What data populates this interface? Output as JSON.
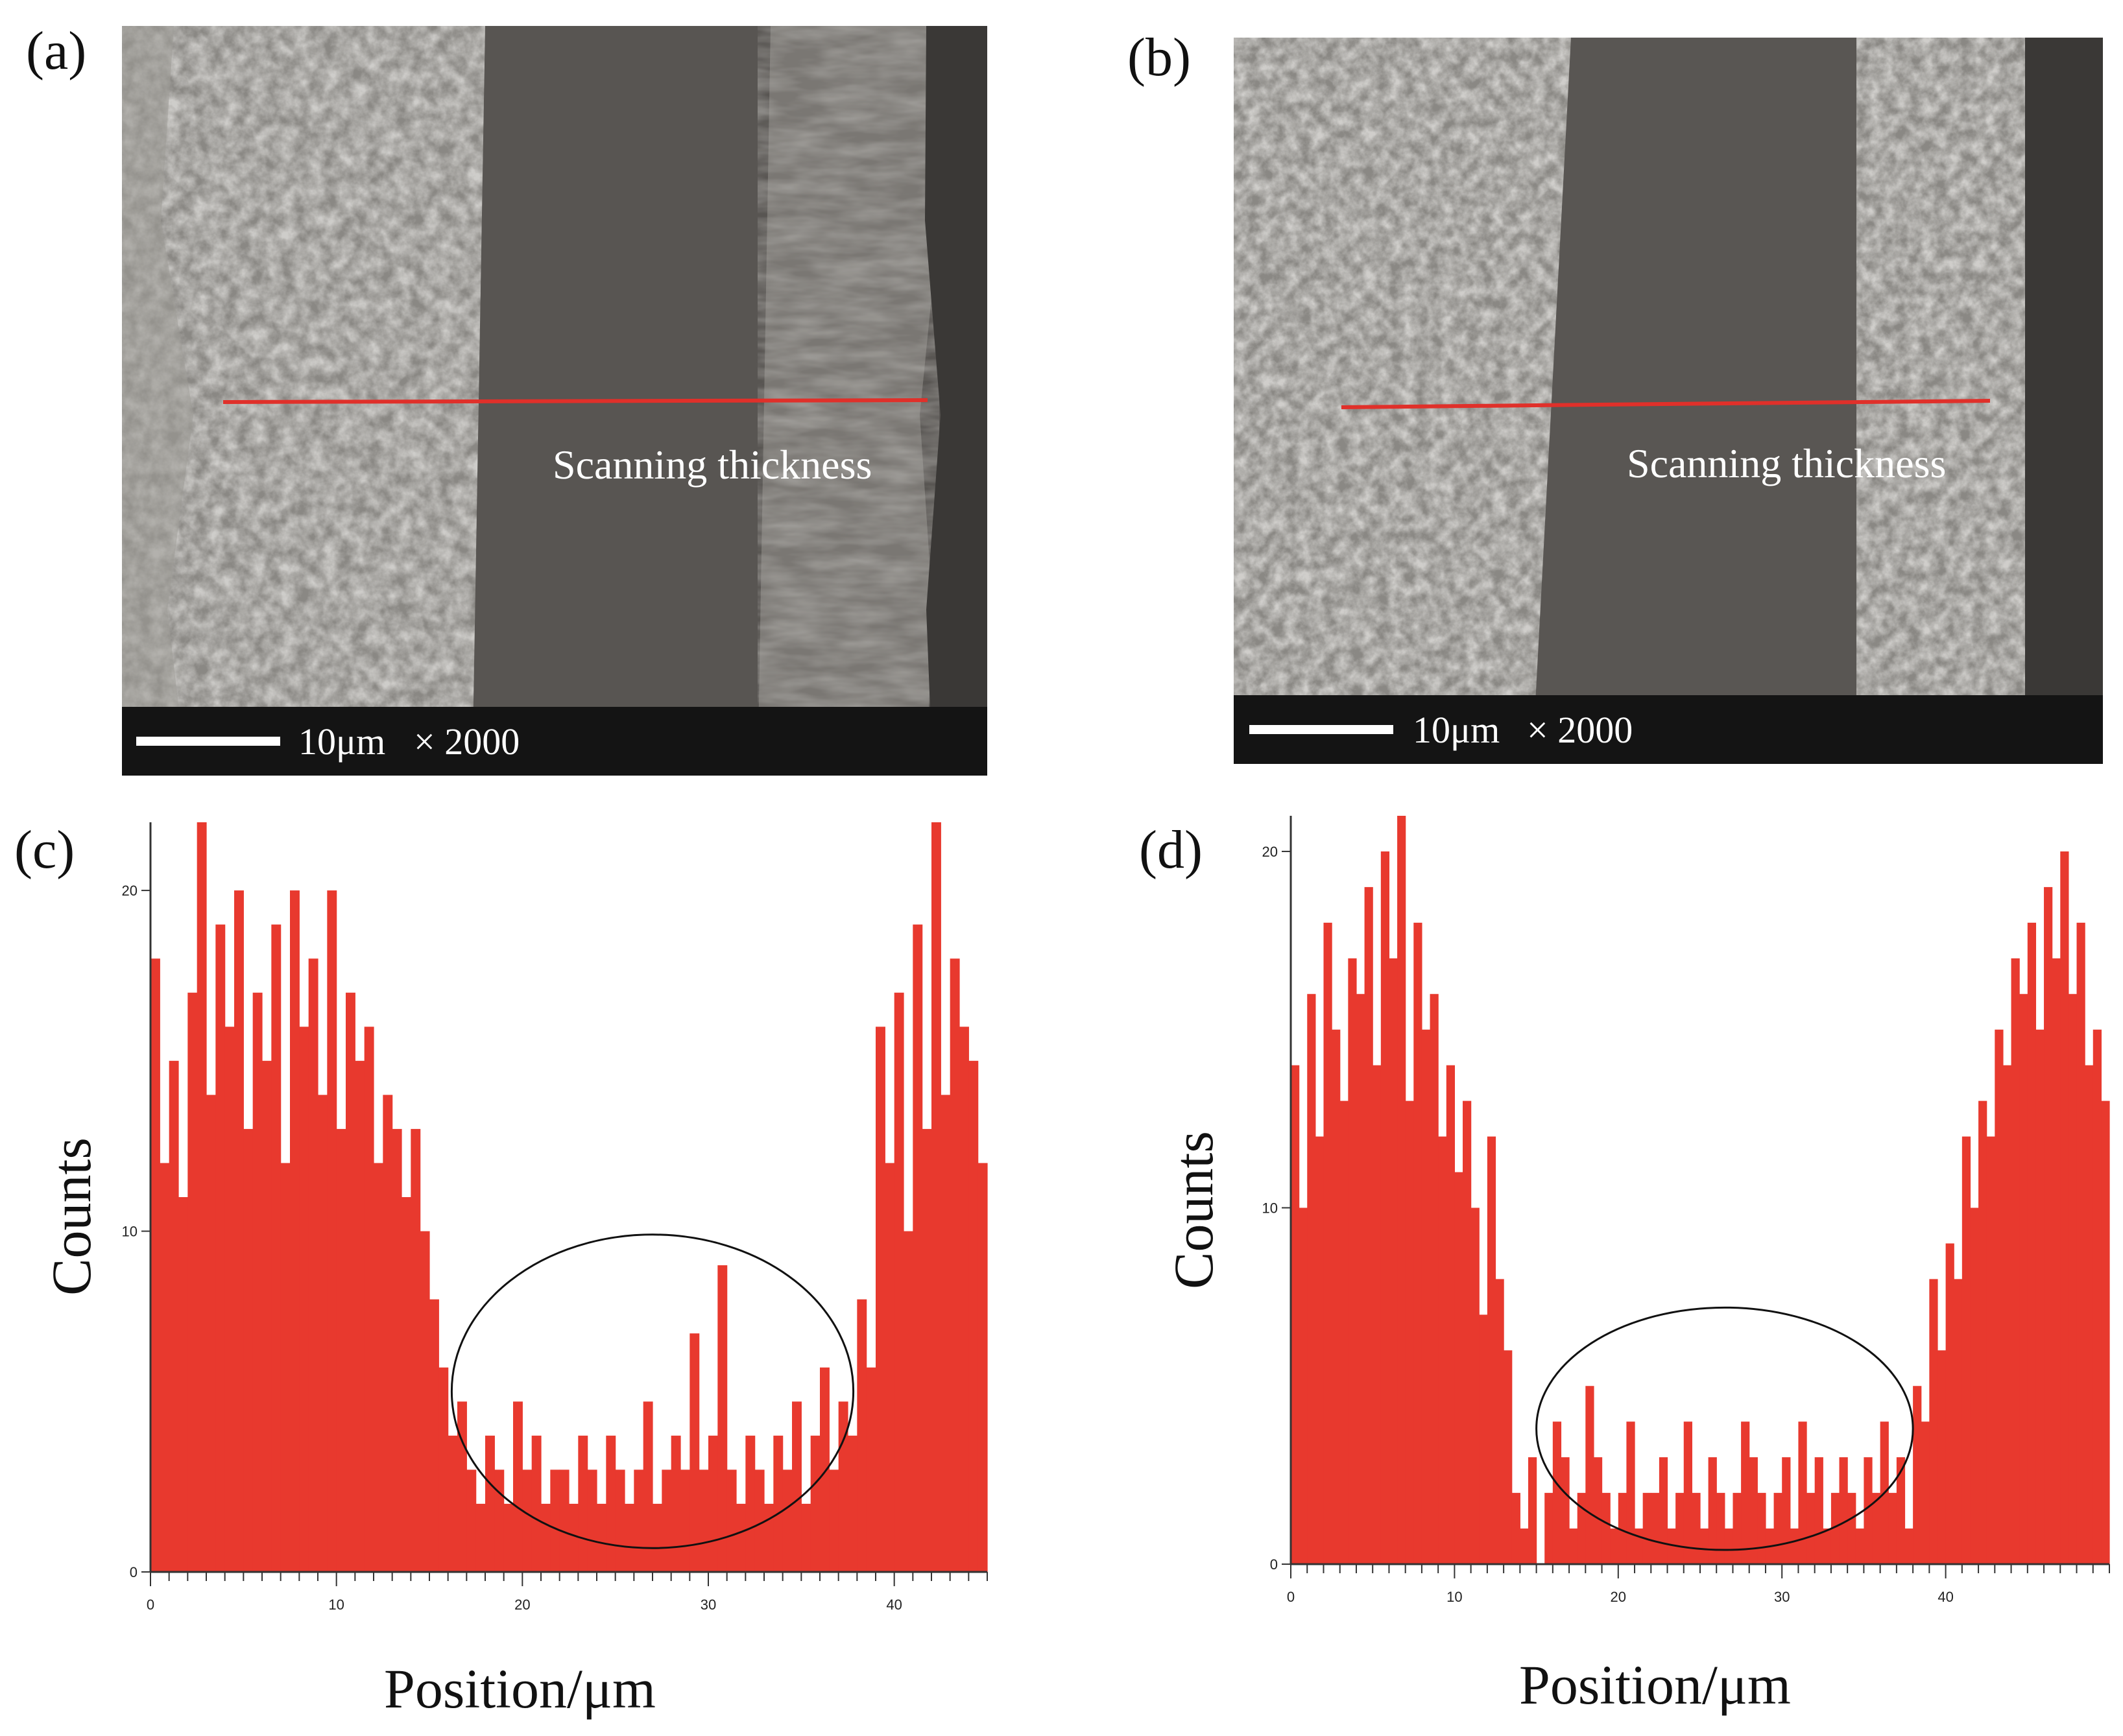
{
  "colors": {
    "bar": "#e8392e",
    "scan_line": "#e0302a",
    "sem_dark": "#4a4744",
    "sem_mid": "#7a7874",
    "sem_light": "#a6a4a0"
  },
  "panels": {
    "a": {
      "letter": "(a)",
      "label": "Scanning thickness",
      "scale_text": "10μm",
      "mag_text": "× 2000"
    },
    "b": {
      "letter": "(b)",
      "label": "Scanning thickness",
      "scale_text": "10μm",
      "mag_text": "× 2000"
    },
    "c": {
      "letter": "(c)"
    },
    "d": {
      "letter": "(d)"
    }
  },
  "chart_data": [
    {
      "type": "bar",
      "panel": "c",
      "xlabel": "Position/μm",
      "ylabel": "Counts",
      "xlim": [
        0,
        45
      ],
      "ylim": [
        0,
        22
      ],
      "xticks": [
        0,
        10,
        20,
        30,
        40
      ],
      "yticks": [
        0,
        10,
        20
      ],
      "annotation": "ellipse around low-count region",
      "ellipse": {
        "cx": 27,
        "cy": 5.3,
        "rx": 10.8,
        "ry": 4.6
      },
      "x": [
        0.0,
        0.5,
        1.0,
        1.5,
        2.0,
        2.5,
        3.0,
        3.5,
        4.0,
        4.5,
        5.0,
        5.5,
        6.0,
        6.5,
        7.0,
        7.5,
        8.0,
        8.5,
        9.0,
        9.5,
        10.0,
        10.5,
        11.0,
        11.5,
        12.0,
        12.5,
        13.0,
        13.5,
        14.0,
        14.5,
        15.0,
        15.5,
        16.0,
        16.5,
        17.0,
        17.5,
        18.0,
        18.5,
        19.0,
        19.5,
        20.0,
        20.5,
        21.0,
        21.5,
        22.0,
        22.5,
        23.0,
        23.5,
        24.0,
        24.5,
        25.0,
        25.5,
        26.0,
        26.5,
        27.0,
        27.5,
        28.0,
        28.5,
        29.0,
        29.5,
        30.0,
        30.5,
        31.0,
        31.5,
        32.0,
        32.5,
        33.0,
        33.5,
        34.0,
        34.5,
        35.0,
        35.5,
        36.0,
        36.5,
        37.0,
        37.5,
        38.0,
        38.5,
        39.0,
        39.5,
        40.0,
        40.5,
        41.0,
        41.5,
        42.0,
        42.5,
        43.0,
        43.5,
        44.0,
        44.5
      ],
      "values": [
        18,
        12,
        15,
        11,
        17,
        22,
        14,
        19,
        16,
        20,
        13,
        17,
        15,
        19,
        12,
        20,
        16,
        18,
        14,
        20,
        13,
        17,
        15,
        16,
        12,
        14,
        13,
        11,
        13,
        10,
        8,
        6,
        4,
        5,
        3,
        2,
        4,
        3,
        2,
        5,
        3,
        4,
        2,
        3,
        3,
        2,
        4,
        3,
        2,
        4,
        3,
        2,
        3,
        5,
        2,
        3,
        4,
        3,
        7,
        3,
        4,
        9,
        3,
        2,
        4,
        3,
        2,
        4,
        3,
        5,
        2,
        4,
        6,
        3,
        5,
        4,
        8,
        6,
        16,
        12,
        17,
        10,
        19,
        13,
        22,
        14,
        18,
        16,
        15,
        12
      ]
    },
    {
      "type": "bar",
      "panel": "d",
      "xlabel": "Position/μm",
      "ylabel": "Counts",
      "xlim": [
        0,
        50
      ],
      "ylim": [
        0,
        21
      ],
      "xticks": [
        0,
        10,
        20,
        30,
        40
      ],
      "yticks": [
        0,
        10,
        20
      ],
      "annotation": "ellipse around low-count region",
      "ellipse": {
        "cx": 26.5,
        "cy": 3.8,
        "rx": 11.5,
        "ry": 3.4
      },
      "x": [
        0.0,
        0.5,
        1.0,
        1.5,
        2.0,
        2.5,
        3.0,
        3.5,
        4.0,
        4.5,
        5.0,
        5.5,
        6.0,
        6.5,
        7.0,
        7.5,
        8.0,
        8.5,
        9.0,
        9.5,
        10.0,
        10.5,
        11.0,
        11.5,
        12.0,
        12.5,
        13.0,
        13.5,
        14.0,
        14.5,
        15.0,
        15.5,
        16.0,
        16.5,
        17.0,
        17.5,
        18.0,
        18.5,
        19.0,
        19.5,
        20.0,
        20.5,
        21.0,
        21.5,
        22.0,
        22.5,
        23.0,
        23.5,
        24.0,
        24.5,
        25.0,
        25.5,
        26.0,
        26.5,
        27.0,
        27.5,
        28.0,
        28.5,
        29.0,
        29.5,
        30.0,
        30.5,
        31.0,
        31.5,
        32.0,
        32.5,
        33.0,
        33.5,
        34.0,
        34.5,
        35.0,
        35.5,
        36.0,
        36.5,
        37.0,
        37.5,
        38.0,
        38.5,
        39.0,
        39.5,
        40.0,
        40.5,
        41.0,
        41.5,
        42.0,
        42.5,
        43.0,
        43.5,
        44.0,
        44.5,
        45.0,
        45.5,
        46.0,
        46.5,
        47.0,
        47.5,
        48.0,
        48.5,
        49.0,
        49.5
      ],
      "values": [
        14,
        10,
        16,
        12,
        18,
        15,
        13,
        17,
        16,
        19,
        14,
        20,
        17,
        21,
        13,
        18,
        15,
        16,
        12,
        14,
        11,
        13,
        10,
        7,
        12,
        8,
        6,
        2,
        1,
        3,
        0,
        2,
        4,
        3,
        1,
        2,
        5,
        3,
        2,
        1,
        2,
        4,
        1,
        2,
        2,
        3,
        1,
        2,
        4,
        2,
        1,
        3,
        2,
        1,
        2,
        4,
        3,
        2,
        1,
        2,
        3,
        1,
        4,
        2,
        3,
        1,
        2,
        3,
        2,
        1,
        3,
        2,
        4,
        2,
        3,
        1,
        5,
        4,
        8,
        6,
        9,
        8,
        12,
        10,
        13,
        12,
        15,
        14,
        17,
        16,
        18,
        15,
        19,
        17,
        20,
        16,
        18,
        14,
        15,
        13
      ]
    }
  ]
}
